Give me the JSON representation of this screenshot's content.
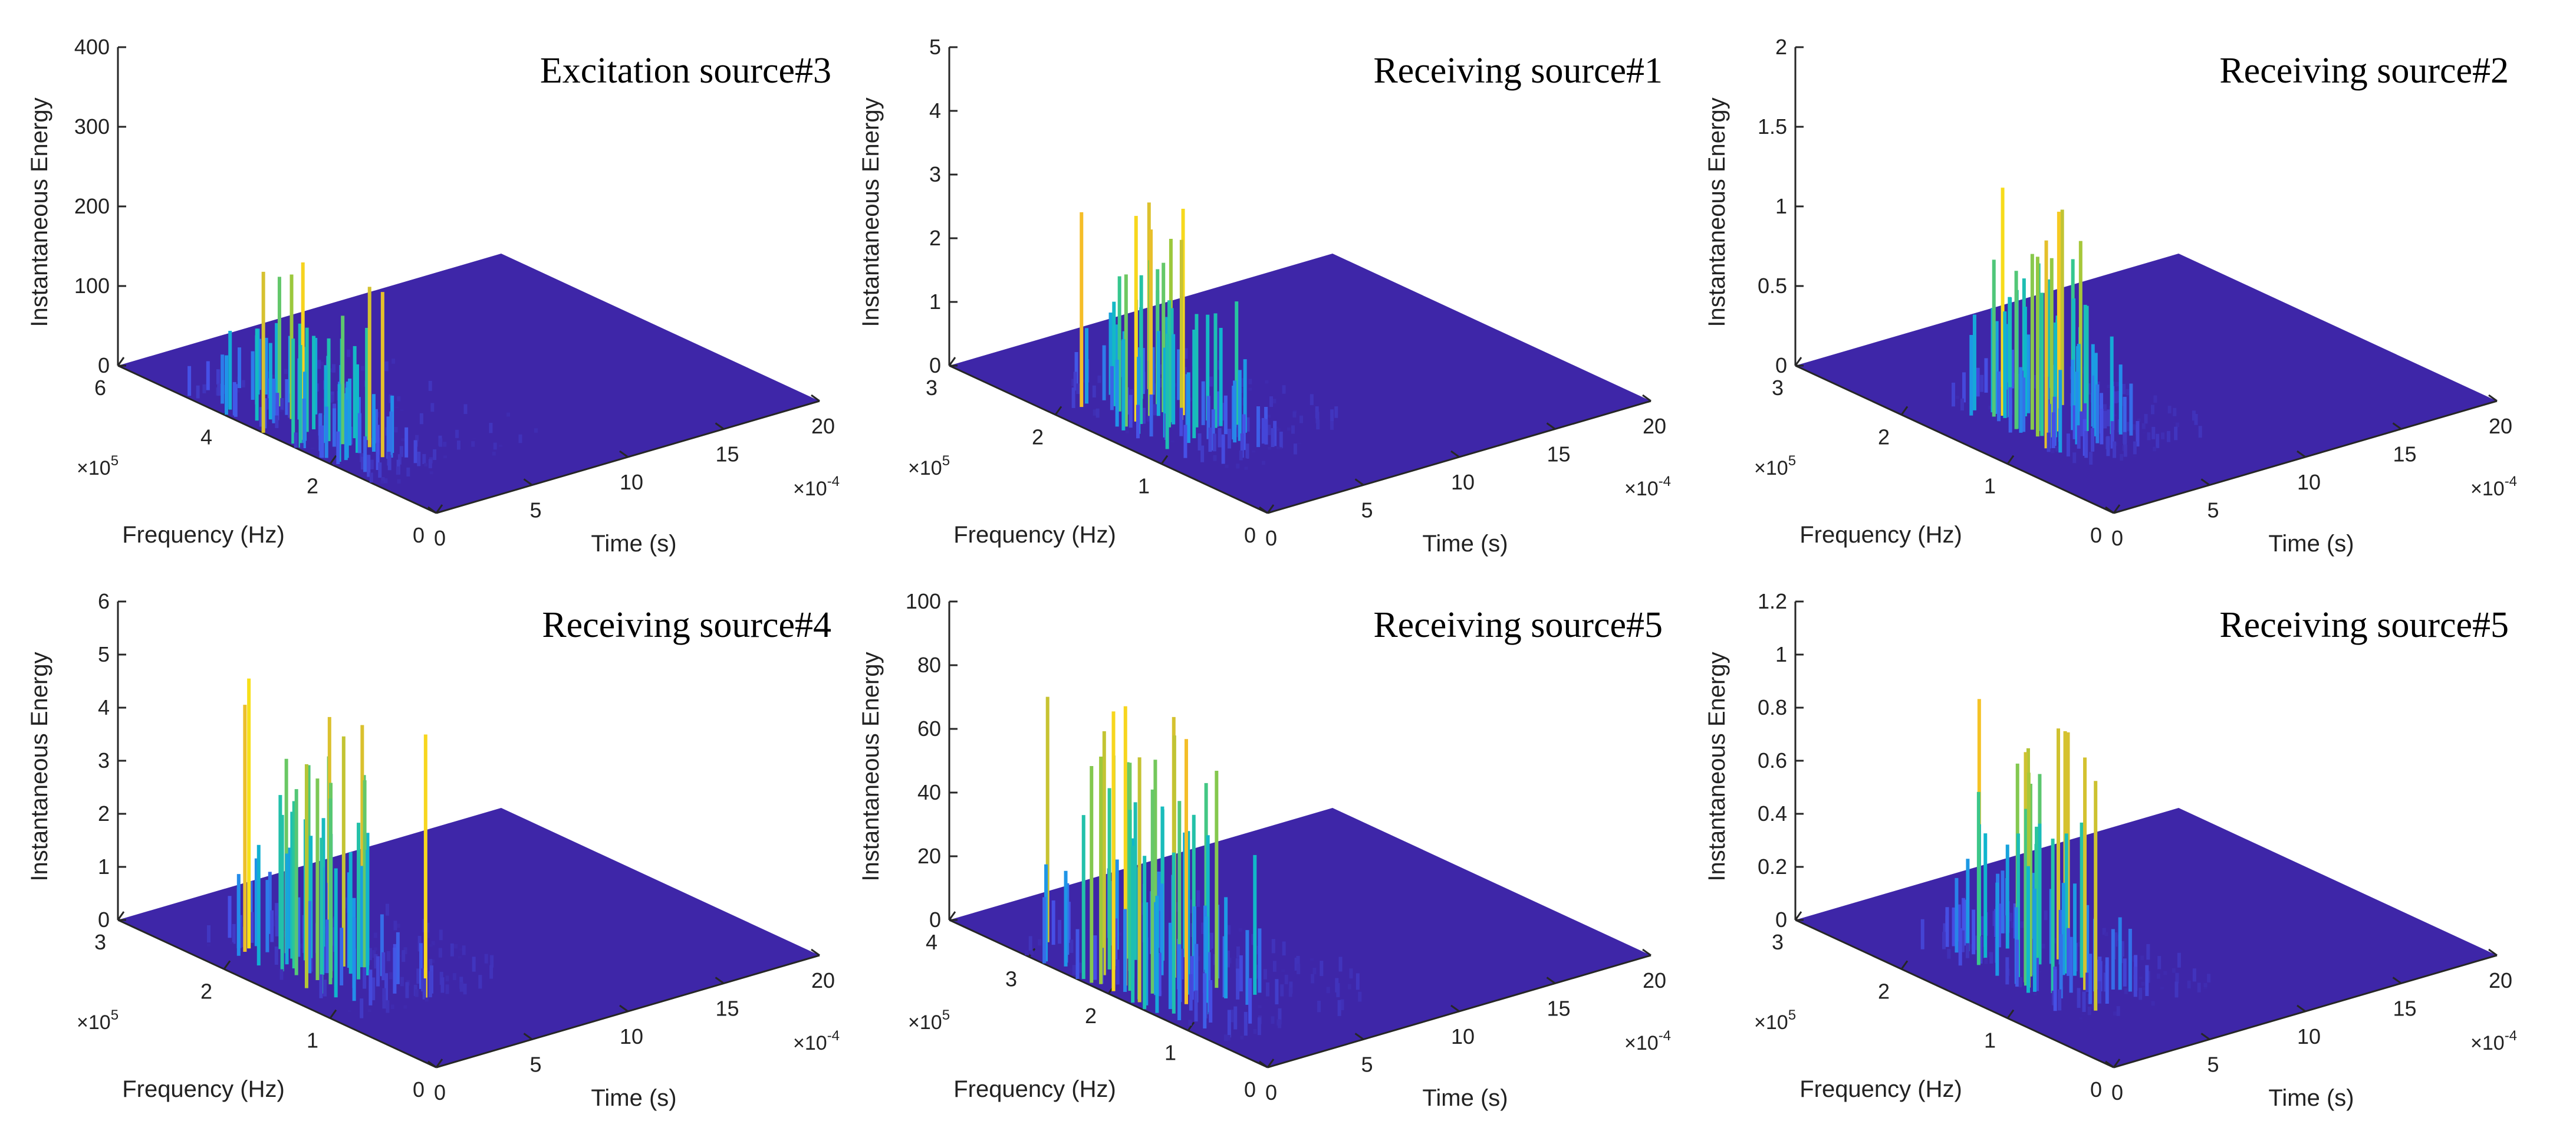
{
  "chart_data": [
    {
      "type": "surface3d",
      "title": "Excitation source#3",
      "zlabel": "Instantaneous Energy",
      "xlabel": "Time (s)",
      "ylabel": "Frequency (Hz)",
      "x_multiplier": "×10-4",
      "y_multiplier": "×105",
      "x_multiplier_base": "×10",
      "x_multiplier_power": "-4",
      "y_multiplier_base": "×10",
      "y_multiplier_power": "5",
      "zlim": [
        0,
        400
      ],
      "zticks": [
        "0",
        "100",
        "200",
        "300",
        "400"
      ],
      "xlim": [
        0,
        20
      ],
      "xticks": [
        "0",
        "5",
        "10",
        "15",
        "20"
      ],
      "ylim": [
        0,
        6
      ],
      "yticks": [
        "0",
        "2",
        "4",
        "6"
      ],
      "peak_energy": 230,
      "burst_time_range": [
        0,
        3
      ],
      "burst_freq_range": [
        1.0,
        4.8
      ]
    },
    {
      "type": "surface3d",
      "title": "Receiving source#1",
      "zlabel": "Instantaneous Energy",
      "xlabel": "Time (s)",
      "ylabel": "Frequency (Hz)",
      "x_multiplier": "×10-4",
      "y_multiplier": "×105",
      "x_multiplier_base": "×10",
      "x_multiplier_power": "-4",
      "y_multiplier_base": "×10",
      "y_multiplier_power": "5",
      "zlim": [
        0,
        5
      ],
      "zticks": [
        "0",
        "1",
        "2",
        "3",
        "4",
        "5"
      ],
      "xlim": [
        0,
        20
      ],
      "xticks": [
        "0",
        "5",
        "10",
        "15",
        "20"
      ],
      "ylim": [
        0,
        3
      ],
      "yticks": [
        "0",
        "1",
        "2",
        "3"
      ],
      "peak_energy": 3.3,
      "burst_time_range": [
        1,
        5
      ],
      "burst_freq_range": [
        0.6,
        2.3
      ]
    },
    {
      "type": "surface3d",
      "title": "Receiving source#2",
      "zlabel": "Instantaneous Energy",
      "xlabel": "Time (s)",
      "ylabel": "Frequency (Hz)",
      "x_multiplier": "×10-4",
      "y_multiplier": "×105",
      "x_multiplier_base": "×10",
      "x_multiplier_power": "-4",
      "y_multiplier_base": "×10",
      "y_multiplier_power": "5",
      "zlim": [
        0,
        2
      ],
      "zticks": [
        "0",
        "0.5",
        "1",
        "1.5",
        "2"
      ],
      "xlim": [
        0,
        20
      ],
      "xticks": [
        "0",
        "5",
        "10",
        "15",
        "20"
      ],
      "ylim": [
        0,
        3
      ],
      "yticks": [
        "0",
        "1",
        "2",
        "3"
      ],
      "peak_energy": 1.45,
      "burst_time_range": [
        2,
        6
      ],
      "burst_freq_range": [
        0.6,
        2.0
      ]
    },
    {
      "type": "surface3d",
      "title": "Receiving source#4",
      "zlabel": "Instantaneous Energy",
      "xlabel": "Time (s)",
      "ylabel": "Frequency (Hz)",
      "x_multiplier": "×10-4",
      "y_multiplier": "×105",
      "x_multiplier_base": "×10",
      "x_multiplier_power": "-4",
      "y_multiplier_base": "×10",
      "y_multiplier_power": "5",
      "zlim": [
        0,
        6
      ],
      "zticks": [
        "0",
        "1",
        "2",
        "3",
        "4",
        "5",
        "6"
      ],
      "xlim": [
        0,
        20
      ],
      "xticks": [
        "0",
        "5",
        "10",
        "15",
        "20"
      ],
      "ylim": [
        0,
        3
      ],
      "yticks": [
        "0",
        "1",
        "2",
        "3"
      ],
      "peak_energy": 5.1,
      "burst_time_range": [
        1,
        5
      ],
      "burst_freq_range": [
        0.8,
        2.4
      ]
    },
    {
      "type": "surface3d",
      "title": "Receiving source#5",
      "zlabel": "Instantaneous Energy",
      "xlabel": "Time (s)",
      "ylabel": "Frequency (Hz)",
      "x_multiplier": "×10-4",
      "y_multiplier": "×105",
      "x_multiplier_base": "×10",
      "x_multiplier_power": "-4",
      "y_multiplier_base": "×10",
      "y_multiplier_power": "5",
      "zlim": [
        0,
        100
      ],
      "zticks": [
        "0",
        "20",
        "40",
        "60",
        "80",
        "100"
      ],
      "xlim": [
        0,
        20
      ],
      "xticks": [
        "0",
        "5",
        "10",
        "15",
        "20"
      ],
      "ylim": [
        0,
        4
      ],
      "yticks": [
        "0",
        "1",
        "2",
        "3",
        "4"
      ],
      "peak_energy": 90,
      "burst_time_range": [
        0,
        5
      ],
      "burst_freq_range": [
        0.5,
        3.2
      ]
    },
    {
      "type": "surface3d",
      "title": "Receiving source#5",
      "zlabel": "Instantaneous Energy",
      "xlabel": "Time (s)",
      "ylabel": "Frequency (Hz)",
      "x_multiplier": "×10-4",
      "y_multiplier": "×105",
      "x_multiplier_base": "×10",
      "x_multiplier_power": "-4",
      "y_multiplier_base": "×10",
      "y_multiplier_power": "5",
      "zlim": [
        0,
        1.2
      ],
      "zticks": [
        "0",
        "0.2",
        "0.4",
        "0.6",
        "0.8",
        "1",
        "1.2"
      ],
      "xlim": [
        0,
        20
      ],
      "xticks": [
        "0",
        "5",
        "10",
        "15",
        "20"
      ],
      "ylim": [
        0,
        3
      ],
      "yticks": [
        "0",
        "1",
        "2",
        "3"
      ],
      "peak_energy": 1.0,
      "burst_time_range": [
        2,
        6
      ],
      "burst_freq_range": [
        0.6,
        2.2
      ]
    }
  ]
}
